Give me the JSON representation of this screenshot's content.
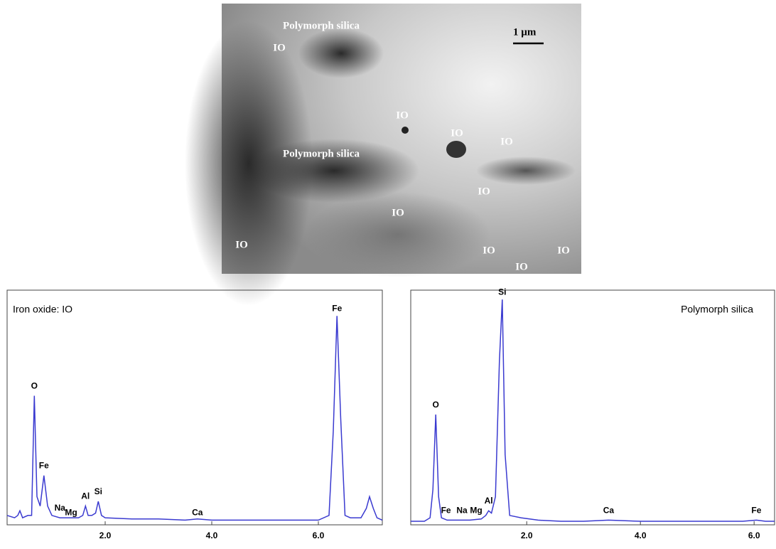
{
  "image": {
    "labels": [
      "Polymorph silica",
      "IO",
      "1 µm",
      "IO",
      "IO",
      "IO",
      "Polymorph silica",
      "IO",
      "IO",
      "IO",
      "IO",
      "IO",
      "IO"
    ]
  },
  "chart_data": [
    {
      "type": "line",
      "title": "Iron oxide: IO",
      "xlim": [
        0.16,
        7.2
      ],
      "ylim": [
        0,
        100
      ],
      "xticks": [
        {
          "value": 2,
          "label": "2.0"
        },
        {
          "value": 4,
          "label": "4.0"
        },
        {
          "value": 6,
          "label": "6.0"
        }
      ],
      "series": [
        {
          "color": "#3a3ad0",
          "x": [
            0.16,
            0.3,
            0.36,
            0.4,
            0.45,
            0.55,
            0.62,
            0.67,
            0.72,
            0.78,
            0.85,
            0.92,
            1.0,
            1.15,
            1.3,
            1.5,
            1.58,
            1.63,
            1.68,
            1.75,
            1.82,
            1.87,
            1.93,
            2.0,
            2.5,
            3.0,
            3.5,
            3.73,
            4.0,
            4.5,
            5.0,
            5.5,
            6.0,
            6.2,
            6.28,
            6.35,
            6.42,
            6.5,
            6.6,
            6.8,
            6.9,
            6.96,
            7.03,
            7.1,
            7.2
          ],
          "values": [
            4,
            3,
            4,
            6,
            3,
            4,
            4,
            55,
            12,
            8,
            21,
            8,
            4,
            3,
            3,
            3,
            4,
            8,
            4,
            4,
            5,
            10,
            4,
            3,
            2.5,
            2.5,
            2,
            2.5,
            2,
            2,
            2,
            2,
            2,
            4,
            40,
            89,
            45,
            4,
            3,
            3,
            7,
            12,
            7,
            3,
            2
          ]
        }
      ],
      "annotations": [
        {
          "text": "O",
          "x": 0.67,
          "y": 59
        },
        {
          "text": "Fe",
          "x": 0.85,
          "y": 25
        },
        {
          "text": "Na",
          "x": 1.15,
          "y": 7
        },
        {
          "text": "Mg",
          "x": 1.36,
          "y": 5
        },
        {
          "text": "Al",
          "x": 1.63,
          "y": 12
        },
        {
          "text": "Si",
          "x": 1.87,
          "y": 14
        },
        {
          "text": "Ca",
          "x": 3.73,
          "y": 5
        },
        {
          "text": "Fe",
          "x": 6.35,
          "y": 92
        }
      ]
    },
    {
      "type": "line",
      "title": "Polymorph silica",
      "xlim": [
        -0.04,
        6.36
      ],
      "ylim": [
        0,
        100
      ],
      "xticks": [
        {
          "value": 2,
          "label": "2.0"
        },
        {
          "value": 4,
          "label": "4.0"
        },
        {
          "value": 6,
          "label": "6.0"
        }
      ],
      "series": [
        {
          "color": "#3a3ad0",
          "x": [
            -0.04,
            0.2,
            0.3,
            0.35,
            0.4,
            0.45,
            0.5,
            0.6,
            0.8,
            1.0,
            1.2,
            1.28,
            1.33,
            1.38,
            1.45,
            1.52,
            1.57,
            1.62,
            1.7,
            1.9,
            2.2,
            2.6,
            3.0,
            3.44,
            4.0,
            5.0,
            5.8,
            6.04,
            6.2,
            6.36
          ],
          "values": [
            1.5,
            1.5,
            3,
            15,
            47,
            12,
            3,
            2,
            2,
            2,
            2.5,
            4,
            6,
            5,
            12,
            70,
            96,
            30,
            4,
            3,
            2,
            1.5,
            1.5,
            2,
            1.5,
            1.5,
            1.5,
            2,
            1.5,
            1.5
          ]
        }
      ],
      "annotations": [
        {
          "text": "O",
          "x": 0.4,
          "y": 51
        },
        {
          "text": "Fe",
          "x": 0.58,
          "y": 6
        },
        {
          "text": "Na",
          "x": 0.86,
          "y": 6
        },
        {
          "text": "Mg",
          "x": 1.11,
          "y": 6
        },
        {
          "text": "Al",
          "x": 1.33,
          "y": 10
        },
        {
          "text": "Si",
          "x": 1.57,
          "y": 99
        },
        {
          "text": "Ca",
          "x": 3.44,
          "y": 6
        },
        {
          "text": "Fe",
          "x": 6.04,
          "y": 6
        }
      ]
    }
  ]
}
